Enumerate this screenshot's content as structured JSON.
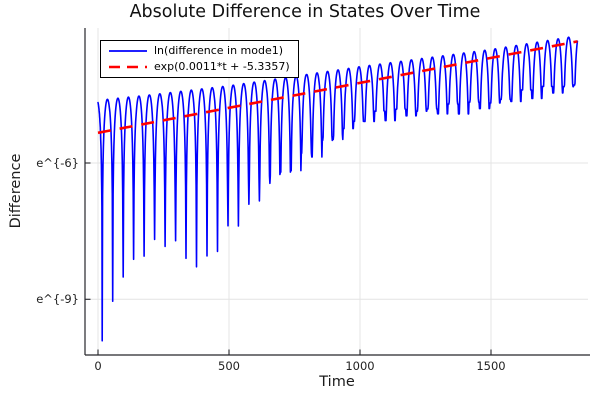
{
  "title": "Absolute Difference in States Over Time",
  "axes": {
    "xlabel": "Time",
    "ylabel": "Difference"
  },
  "legend": {
    "position": "top-left"
  },
  "chart_data": {
    "type": "line",
    "title": "Absolute Difference in States Over Time",
    "xlabel": "Time",
    "ylabel": "Difference",
    "y_scale": "natural-log",
    "x_range": [
      0,
      1830
    ],
    "xlim": [
      -50,
      1880
    ],
    "ylim_ln": [
      -10.23,
      -3.08
    ],
    "grid": true,
    "legend_position": "top-left",
    "x_ticks": [
      {
        "value": 0,
        "label": "0"
      },
      {
        "value": 500,
        "label": "500"
      },
      {
        "value": 1000,
        "label": "1000"
      },
      {
        "value": 1500,
        "label": "1500"
      }
    ],
    "y_ticks": [
      {
        "value": -6,
        "label": "e^{-6}"
      },
      {
        "value": -9,
        "label": "e^{-9}"
      }
    ],
    "series": [
      {
        "name": "ln(difference in mode1)",
        "color": "#0000ff",
        "style": "solid",
        "line_width": 1.6,
        "model": "v(t) = peak_envelope_ln(t) + ln|sin(pi*(t - first_zero_t)/half_period)| floored at dip_floor_ln(t); plotted on ln scale",
        "half_period": 40,
        "first_zero_t": 16,
        "dip_jitter": 0.12,
        "peak_envelope_ln": [
          [
            0,
            -4.62
          ],
          [
            200,
            -4.5
          ],
          [
            500,
            -4.3
          ],
          [
            1000,
            -3.88
          ],
          [
            1500,
            -3.5
          ],
          [
            1830,
            -3.2
          ]
        ],
        "dip_floor_ln": [
          [
            16,
            -10.0
          ],
          [
            56,
            -9.0
          ],
          [
            96,
            -8.5
          ],
          [
            136,
            -8.18
          ],
          [
            176,
            -7.95
          ],
          [
            216,
            -7.8
          ],
          [
            256,
            -7.72
          ],
          [
            296,
            -7.8
          ],
          [
            336,
            -8.05
          ],
          [
            376,
            -8.28
          ],
          [
            416,
            -8.1
          ],
          [
            456,
            -7.85
          ],
          [
            496,
            -7.5
          ],
          [
            536,
            -7.27
          ],
          [
            576,
            -7.0
          ],
          [
            616,
            -6.78
          ],
          [
            656,
            -6.45
          ],
          [
            696,
            -6.25
          ],
          [
            776,
            -5.9
          ],
          [
            856,
            -5.6
          ],
          [
            936,
            -5.25
          ],
          [
            1016,
            -5.0
          ],
          [
            1136,
            -4.92
          ],
          [
            1256,
            -4.85
          ],
          [
            1376,
            -4.8
          ],
          [
            1496,
            -4.7
          ],
          [
            1616,
            -4.5
          ],
          [
            1716,
            -4.4
          ],
          [
            1830,
            -4.3
          ]
        ]
      },
      {
        "name": "exp(0.0011*t + -5.3357)",
        "color": "#ff0000",
        "style": "dashed",
        "line_width": 2.6,
        "model": "straight line on ln scale: v(t) = slope*t + intercept",
        "slope": 0.0011,
        "intercept": -5.3357
      }
    ]
  }
}
